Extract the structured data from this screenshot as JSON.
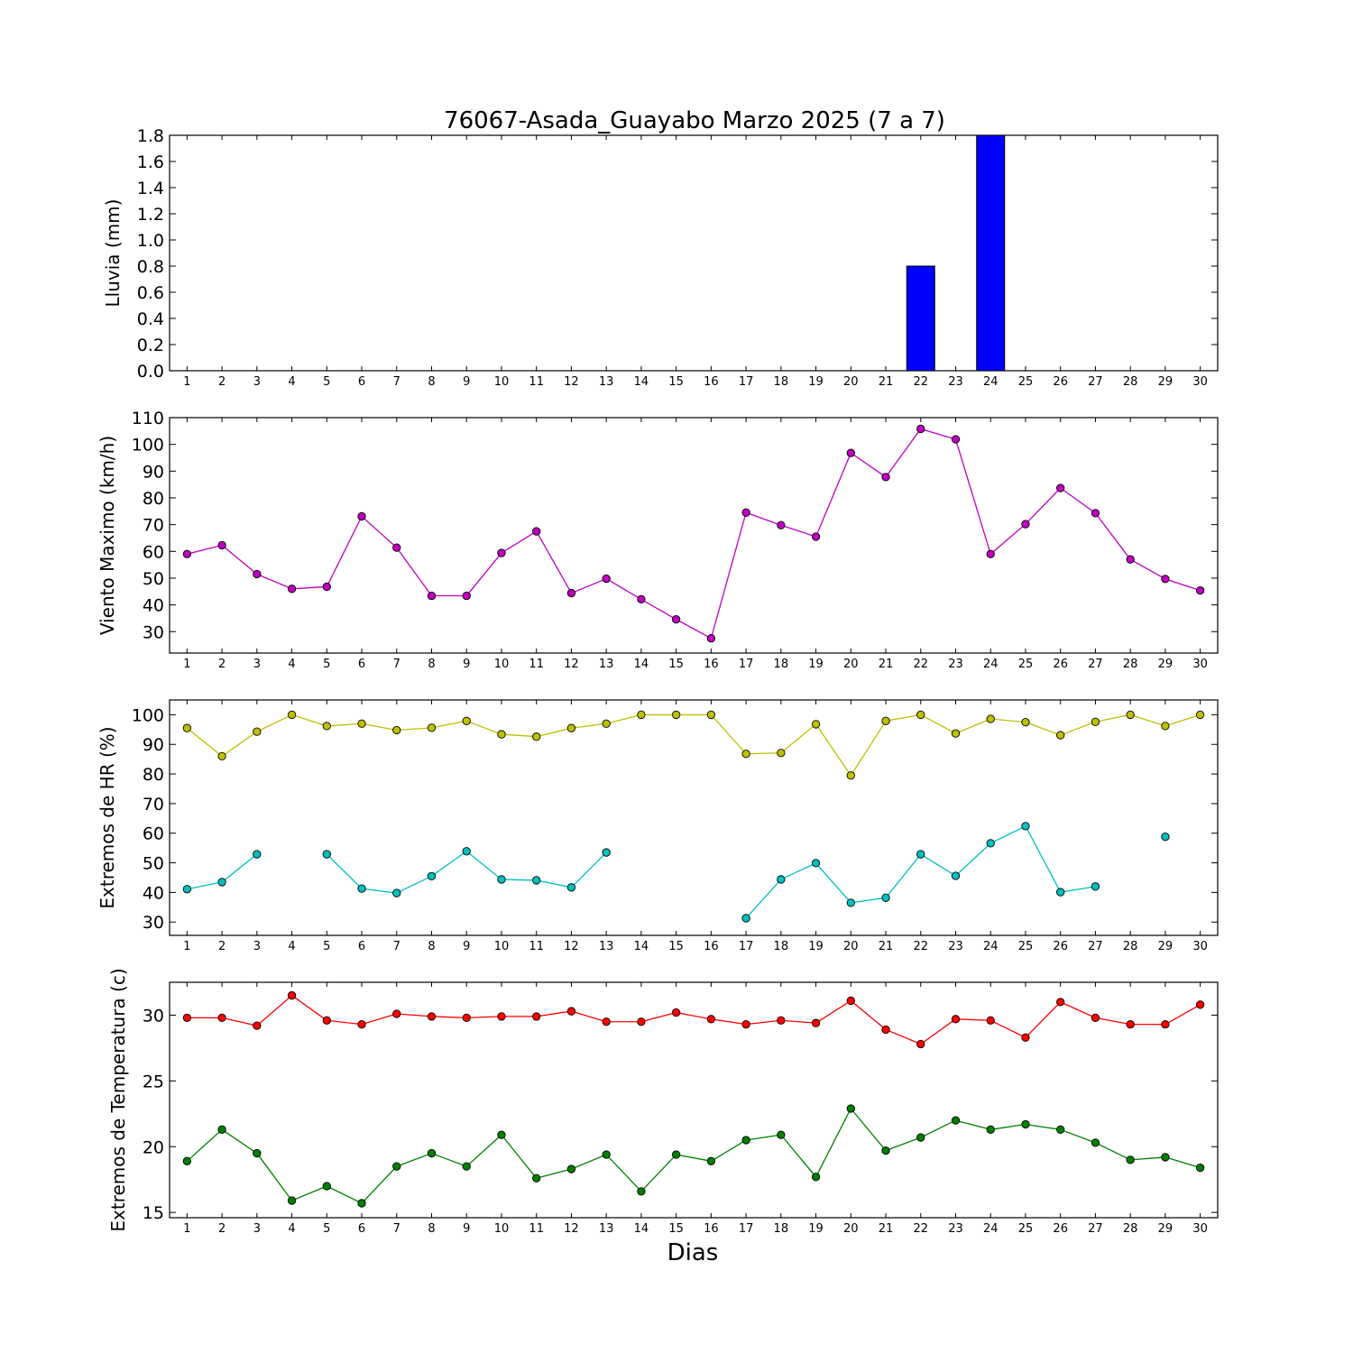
{
  "title": "76067-Asada_Guayabo Marzo 2025  (7 a 7)",
  "xlabel": "Dias",
  "days": [
    1,
    2,
    3,
    4,
    5,
    6,
    7,
    8,
    9,
    10,
    11,
    12,
    13,
    14,
    15,
    16,
    17,
    18,
    19,
    20,
    21,
    22,
    23,
    24,
    25,
    26,
    27,
    28,
    29,
    30
  ],
  "chart_data": [
    {
      "type": "bar",
      "ylabel": "Lluvia (mm)",
      "ylim": [
        0,
        1.8
      ],
      "yticks": [
        "0.0",
        "0.2",
        "0.4",
        "0.6",
        "0.8",
        "1.0",
        "1.2",
        "1.4",
        "1.6",
        "1.8"
      ],
      "colors": [
        "#0000ff"
      ],
      "x": [
        1,
        2,
        3,
        4,
        5,
        6,
        7,
        8,
        9,
        10,
        11,
        12,
        13,
        14,
        15,
        16,
        17,
        18,
        19,
        20,
        21,
        22,
        23,
        24,
        25,
        26,
        27,
        28,
        29,
        30
      ],
      "series": [
        {
          "values": [
            0,
            0,
            0,
            0,
            0,
            0,
            0,
            0,
            0,
            0,
            0,
            0,
            0,
            0,
            0,
            0,
            0,
            0,
            0,
            0,
            0,
            0.8,
            0,
            1.8,
            0,
            0,
            0,
            0,
            0,
            0
          ]
        }
      ]
    },
    {
      "type": "line",
      "ylabel": "Viento Maximo (km/h)",
      "ylim": [
        22,
        110
      ],
      "yticks": [
        "30",
        "40",
        "50",
        "60",
        "70",
        "80",
        "90",
        "100",
        "110"
      ],
      "colors": [
        "#bf00bf"
      ],
      "x": [
        1,
        2,
        3,
        4,
        5,
        6,
        7,
        8,
        9,
        10,
        11,
        12,
        13,
        14,
        15,
        16,
        17,
        18,
        19,
        20,
        21,
        22,
        23,
        24,
        25,
        26,
        27,
        28,
        29,
        30
      ],
      "series": [
        {
          "values": [
            59,
            62.3,
            51.5,
            46,
            46.8,
            73.1,
            61.4,
            43.4,
            43.4,
            59.4,
            67.5,
            44.4,
            49.8,
            42.1,
            34.6,
            27.5,
            74.5,
            69.8,
            65.5,
            96.8,
            87.8,
            105.8,
            101.9,
            59,
            70.2,
            83.7,
            74.3,
            57,
            49.7,
            45.4
          ]
        }
      ]
    },
    {
      "type": "line",
      "ylabel": "Extremos de HR (%)",
      "ylim": [
        25.5,
        105
      ],
      "yticks": [
        "30",
        "40",
        "50",
        "60",
        "70",
        "80",
        "90",
        "100"
      ],
      "colors": [
        "#bfbf00",
        "#00bfbf"
      ],
      "x": [
        1,
        2,
        3,
        4,
        5,
        6,
        7,
        8,
        9,
        10,
        11,
        12,
        13,
        14,
        15,
        16,
        17,
        18,
        19,
        20,
        21,
        22,
        23,
        24,
        25,
        26,
        27,
        28,
        29,
        30
      ],
      "series": [
        {
          "values": [
            95.5,
            86,
            94.3,
            100,
            96.2,
            97,
            94.8,
            95.6,
            97.9,
            93.4,
            92.6,
            95.5,
            97,
            100,
            100,
            100,
            86.8,
            87.1,
            96.8,
            79.5,
            97.9,
            100,
            93.7,
            98.6,
            97.5,
            93.1,
            97.6,
            100,
            96.2,
            100
          ]
        },
        {
          "values": [
            41.1,
            43.5,
            52.9,
            null,
            52.9,
            41.3,
            39.8,
            45.5,
            53.9,
            44.4,
            44.1,
            41.7,
            53.5,
            null,
            null,
            null,
            31.3,
            44.4,
            49.9,
            36.5,
            38.2,
            52.9,
            45.6,
            56.6,
            62.4,
            40.1,
            42,
            null,
            58.8,
            null
          ]
        }
      ]
    },
    {
      "type": "line",
      "ylabel": "Extremos de Temperatura (c)",
      "ylim": [
        14.6,
        32.5
      ],
      "yticks": [
        "15",
        "20",
        "25",
        "30"
      ],
      "colors": [
        "#ff0000",
        "#007f00"
      ],
      "x": [
        1,
        2,
        3,
        4,
        5,
        6,
        7,
        8,
        9,
        10,
        11,
        12,
        13,
        14,
        15,
        16,
        17,
        18,
        19,
        20,
        21,
        22,
        23,
        24,
        25,
        26,
        27,
        28,
        29,
        30
      ],
      "series": [
        {
          "values": [
            29.8,
            29.8,
            29.2,
            31.5,
            29.6,
            29.3,
            30.1,
            29.9,
            29.8,
            29.9,
            29.9,
            30.3,
            29.5,
            29.5,
            30.2,
            29.7,
            29.3,
            29.6,
            29.4,
            31.1,
            28.9,
            27.8,
            29.7,
            29.6,
            28.3,
            31,
            29.8,
            29.3,
            29.3,
            30.8
          ]
        },
        {
          "values": [
            18.9,
            21.3,
            19.5,
            15.9,
            17,
            15.7,
            18.5,
            19.5,
            18.5,
            20.9,
            17.6,
            18.3,
            19.4,
            16.6,
            19.4,
            18.9,
            20.5,
            20.9,
            17.7,
            22.9,
            19.7,
            20.7,
            22,
            21.3,
            21.7,
            21.3,
            20.3,
            19,
            19.2,
            18.4
          ]
        }
      ]
    }
  ]
}
